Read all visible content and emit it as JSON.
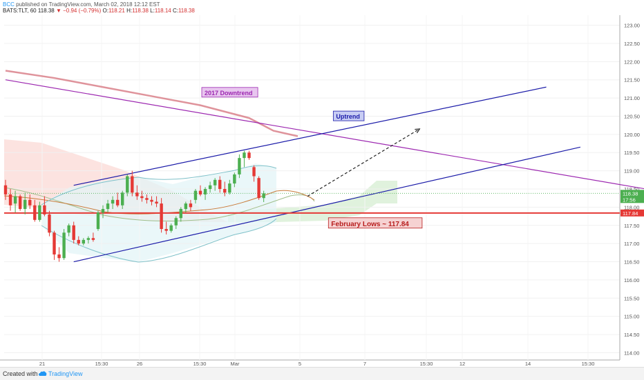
{
  "header": {
    "brand": "BCC",
    "published": "published on TradingView.com, March 02, 2018 12:12 EST",
    "symbol": "BATS:TLT, 60",
    "last": "118.38",
    "change": "−0.94 (−0.79%)",
    "o_label": "O:",
    "o_value": "118.21",
    "h_label": "H:",
    "h_value": "118.38",
    "l_label": "L:",
    "l_value": "118.14",
    "c_label": "C:",
    "c_value": "118.38"
  },
  "footer": {
    "created_with": "Created with",
    "brand": "TradingView"
  },
  "colors": {
    "up_candle": "#4caf50",
    "down_candle": "#e53935",
    "downtrend_line": "#9c27b0",
    "uptrend_line": "#1a1aa8",
    "support_line": "#e53935",
    "ma_line": "#d9808a",
    "price_line": "#4caf50"
  },
  "chart_data": {
    "type": "candlestick",
    "symbol": "BATS:TLT",
    "timeframe": "60",
    "ylim": [
      113.8,
      123.2
    ],
    "y_ticks": [
      "123.00",
      "122.50",
      "122.00",
      "121.50",
      "121.00",
      "120.50",
      "120.00",
      "119.50",
      "119.00",
      "118.50",
      "118.00",
      "117.50",
      "117.00",
      "116.50",
      "116.00",
      "115.50",
      "115.00",
      "114.50",
      "114.00"
    ],
    "x_ticks": [
      "21",
      "15:30",
      "26",
      "15:30",
      "Mar",
      "5",
      "7",
      "15:30",
      "12",
      "14",
      "15:30"
    ],
    "price_labels": [
      {
        "label": "118.38",
        "value": 118.38,
        "color": "#4caf50"
      },
      {
        "label": "17:56",
        "value": 118.18,
        "color": "#4caf50"
      },
      {
        "label": "117.84",
        "value": 117.84,
        "color": "#e53935"
      }
    ],
    "candles": [
      {
        "o": 118.6,
        "h": 118.75,
        "l": 118.2,
        "c": 118.35
      },
      {
        "o": 118.35,
        "h": 118.5,
        "l": 117.9,
        "c": 118.05
      },
      {
        "o": 118.1,
        "h": 118.45,
        "l": 117.85,
        "c": 118.3
      },
      {
        "o": 118.3,
        "h": 118.35,
        "l": 117.9,
        "c": 117.95
      },
      {
        "o": 117.95,
        "h": 118.4,
        "l": 117.8,
        "c": 118.2
      },
      {
        "o": 118.2,
        "h": 118.35,
        "l": 117.95,
        "c": 118.05
      },
      {
        "o": 118.05,
        "h": 118.2,
        "l": 117.6,
        "c": 117.65
      },
      {
        "o": 117.65,
        "h": 118.15,
        "l": 117.6,
        "c": 118.05
      },
      {
        "o": 118.05,
        "h": 118.3,
        "l": 117.75,
        "c": 117.8
      },
      {
        "o": 117.8,
        "h": 117.9,
        "l": 117.2,
        "c": 117.3
      },
      {
        "o": 117.3,
        "h": 117.35,
        "l": 116.55,
        "c": 116.7
      },
      {
        "o": 116.7,
        "h": 116.9,
        "l": 116.5,
        "c": 116.6
      },
      {
        "o": 116.6,
        "h": 117.4,
        "l": 116.55,
        "c": 117.3
      },
      {
        "o": 117.3,
        "h": 117.55,
        "l": 117.2,
        "c": 117.5
      },
      {
        "o": 117.5,
        "h": 117.6,
        "l": 117.0,
        "c": 117.1
      },
      {
        "o": 117.1,
        "h": 117.2,
        "l": 116.95,
        "c": 117.0
      },
      {
        "o": 117.0,
        "h": 117.15,
        "l": 116.95,
        "c": 117.1
      },
      {
        "o": 117.1,
        "h": 117.2,
        "l": 117.0,
        "c": 117.15
      },
      {
        "o": 117.15,
        "h": 117.3,
        "l": 117.05,
        "c": 117.1
      },
      {
        "o": 117.4,
        "h": 117.9,
        "l": 117.35,
        "c": 117.85
      },
      {
        "o": 117.85,
        "h": 118.05,
        "l": 117.7,
        "c": 117.95
      },
      {
        "o": 117.95,
        "h": 118.2,
        "l": 117.85,
        "c": 118.1
      },
      {
        "o": 118.1,
        "h": 118.3,
        "l": 117.95,
        "c": 118.2
      },
      {
        "o": 118.2,
        "h": 118.4,
        "l": 118.0,
        "c": 118.05
      },
      {
        "o": 118.05,
        "h": 118.45,
        "l": 117.95,
        "c": 118.4
      },
      {
        "o": 118.4,
        "h": 118.9,
        "l": 118.3,
        "c": 118.85
      },
      {
        "o": 118.85,
        "h": 119.0,
        "l": 118.3,
        "c": 118.4
      },
      {
        "o": 118.4,
        "h": 118.6,
        "l": 118.2,
        "c": 118.3
      },
      {
        "o": 118.3,
        "h": 118.45,
        "l": 118.15,
        "c": 118.25
      },
      {
        "o": 118.25,
        "h": 118.35,
        "l": 118.1,
        "c": 118.2
      },
      {
        "o": 118.2,
        "h": 118.3,
        "l": 118.05,
        "c": 118.15
      },
      {
        "o": 118.15,
        "h": 118.3,
        "l": 118.0,
        "c": 118.1
      },
      {
        "o": 118.1,
        "h": 118.25,
        "l": 117.3,
        "c": 117.4
      },
      {
        "o": 117.4,
        "h": 117.6,
        "l": 117.25,
        "c": 117.35
      },
      {
        "o": 117.35,
        "h": 117.55,
        "l": 117.3,
        "c": 117.5
      },
      {
        "o": 117.5,
        "h": 117.75,
        "l": 117.4,
        "c": 117.7
      },
      {
        "o": 117.7,
        "h": 118.0,
        "l": 117.6,
        "c": 117.95
      },
      {
        "o": 117.95,
        "h": 118.15,
        "l": 117.85,
        "c": 118.1
      },
      {
        "o": 118.1,
        "h": 118.2,
        "l": 117.9,
        "c": 118.0
      },
      {
        "o": 118.2,
        "h": 118.5,
        "l": 118.1,
        "c": 118.45
      },
      {
        "o": 118.45,
        "h": 118.6,
        "l": 118.3,
        "c": 118.35
      },
      {
        "o": 118.35,
        "h": 118.55,
        "l": 118.2,
        "c": 118.5
      },
      {
        "o": 118.5,
        "h": 118.7,
        "l": 118.4,
        "c": 118.6
      },
      {
        "o": 118.6,
        "h": 118.8,
        "l": 118.45,
        "c": 118.75
      },
      {
        "o": 118.75,
        "h": 118.85,
        "l": 118.4,
        "c": 118.5
      },
      {
        "o": 118.5,
        "h": 118.7,
        "l": 118.3,
        "c": 118.4
      },
      {
        "o": 118.4,
        "h": 118.75,
        "l": 118.35,
        "c": 118.65
      },
      {
        "o": 118.65,
        "h": 118.95,
        "l": 118.55,
        "c": 118.9
      },
      {
        "o": 118.9,
        "h": 119.45,
        "l": 118.8,
        "c": 119.35
      },
      {
        "o": 119.35,
        "h": 119.55,
        "l": 119.1,
        "c": 119.5
      },
      {
        "o": 119.5,
        "h": 119.55,
        "l": 119.3,
        "c": 119.35
      },
      {
        "o": 119.1,
        "h": 119.15,
        "l": 118.7,
        "c": 118.85
      },
      {
        "o": 118.8,
        "h": 118.85,
        "l": 118.2,
        "c": 118.25
      },
      {
        "o": 118.25,
        "h": 118.45,
        "l": 118.14,
        "c": 118.38
      }
    ],
    "ma_line": [
      {
        "x": 0,
        "y": 121.75
      },
      {
        "x": 10,
        "y": 121.55
      },
      {
        "x": 20,
        "y": 121.3
      },
      {
        "x": 30,
        "y": 121.05
      },
      {
        "x": 40,
        "y": 120.8
      },
      {
        "x": 50,
        "y": 120.45
      },
      {
        "x": 55,
        "y": 120.1
      },
      {
        "x": 60,
        "y": 119.95
      }
    ],
    "annotations": [
      {
        "text": "2017 Downtrend",
        "x": 40,
        "y": 121.1,
        "color": "#9c27b0",
        "bg": "#e8c6ef"
      },
      {
        "text": "Uptrend",
        "x": 67,
        "y": 120.45,
        "color": "#1a1aa8",
        "bg": "#c8cdf4"
      },
      {
        "text": "February Lows ~ 117.84",
        "x": 66,
        "y": 117.5,
        "color": "#b71c1c",
        "bg": "#f6d2d2"
      }
    ],
    "trend_lines": [
      {
        "name": "2017 Downtrend",
        "x1": 0,
        "y1": 121.5,
        "x2": 138,
        "y2": 118.35,
        "color": "#9c27b0"
      },
      {
        "name": "Uptrend upper",
        "x1": 14,
        "y1": 118.6,
        "x2": 111,
        "y2": 121.3,
        "color": "#1a1aa8"
      },
      {
        "name": "Uptrend lower",
        "x1": 14,
        "y1": 116.5,
        "x2": 118,
        "y2": 119.65,
        "color": "#1a1aa8"
      }
    ],
    "support": 117.84,
    "projection": {
      "x1": 62,
      "y1": 118.3,
      "x2": 85,
      "y2": 120.15
    }
  }
}
